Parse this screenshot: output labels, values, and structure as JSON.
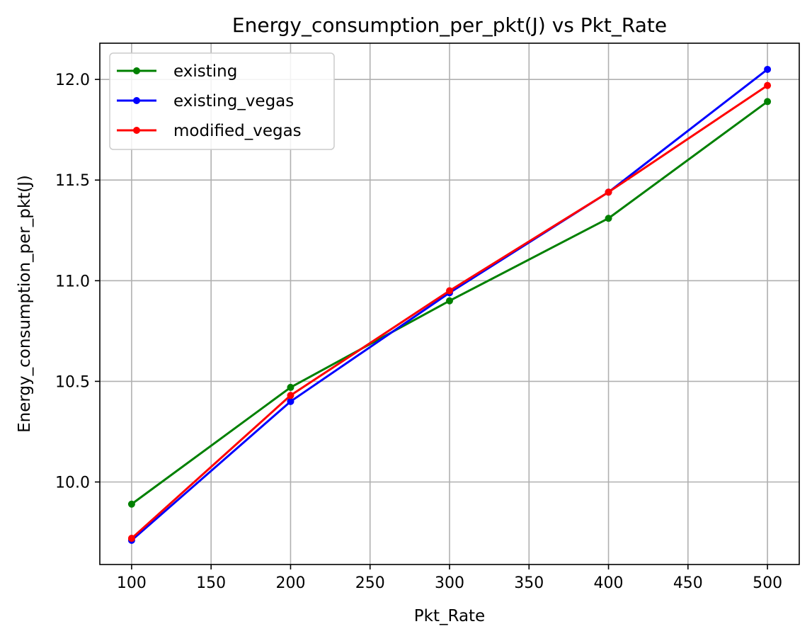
{
  "chart_data": {
    "type": "line",
    "title": "Energy_consumption_per_pkt(J) vs Pkt_Rate",
    "xlabel": "Pkt_Rate",
    "ylabel": "Energy_consumption_per_pkt(J)",
    "x": [
      100,
      200,
      300,
      400,
      500
    ],
    "xlim": [
      80,
      520
    ],
    "ylim": [
      9.59,
      12.18
    ],
    "xticks": [
      100,
      150,
      200,
      250,
      300,
      350,
      400,
      450,
      500
    ],
    "yticks": [
      10.0,
      10.5,
      11.0,
      11.5,
      12.0
    ],
    "xtick_labels": [
      "100",
      "150",
      "200",
      "250",
      "300",
      "350",
      "400",
      "450",
      "500"
    ],
    "ytick_labels": [
      "10.0",
      "10.5",
      "11.0",
      "11.5",
      "12.0"
    ],
    "grid": true,
    "legend_position": "upper-left",
    "series": [
      {
        "name": "existing",
        "color": "#008000",
        "values": [
          9.89,
          10.47,
          10.9,
          11.31,
          11.89
        ]
      },
      {
        "name": "existing_vegas",
        "color": "#0000ff",
        "values": [
          9.71,
          10.4,
          10.94,
          11.44,
          12.05
        ]
      },
      {
        "name": "modified_vegas",
        "color": "#ff0000",
        "values": [
          9.72,
          10.43,
          10.95,
          11.44,
          11.97
        ]
      }
    ]
  }
}
